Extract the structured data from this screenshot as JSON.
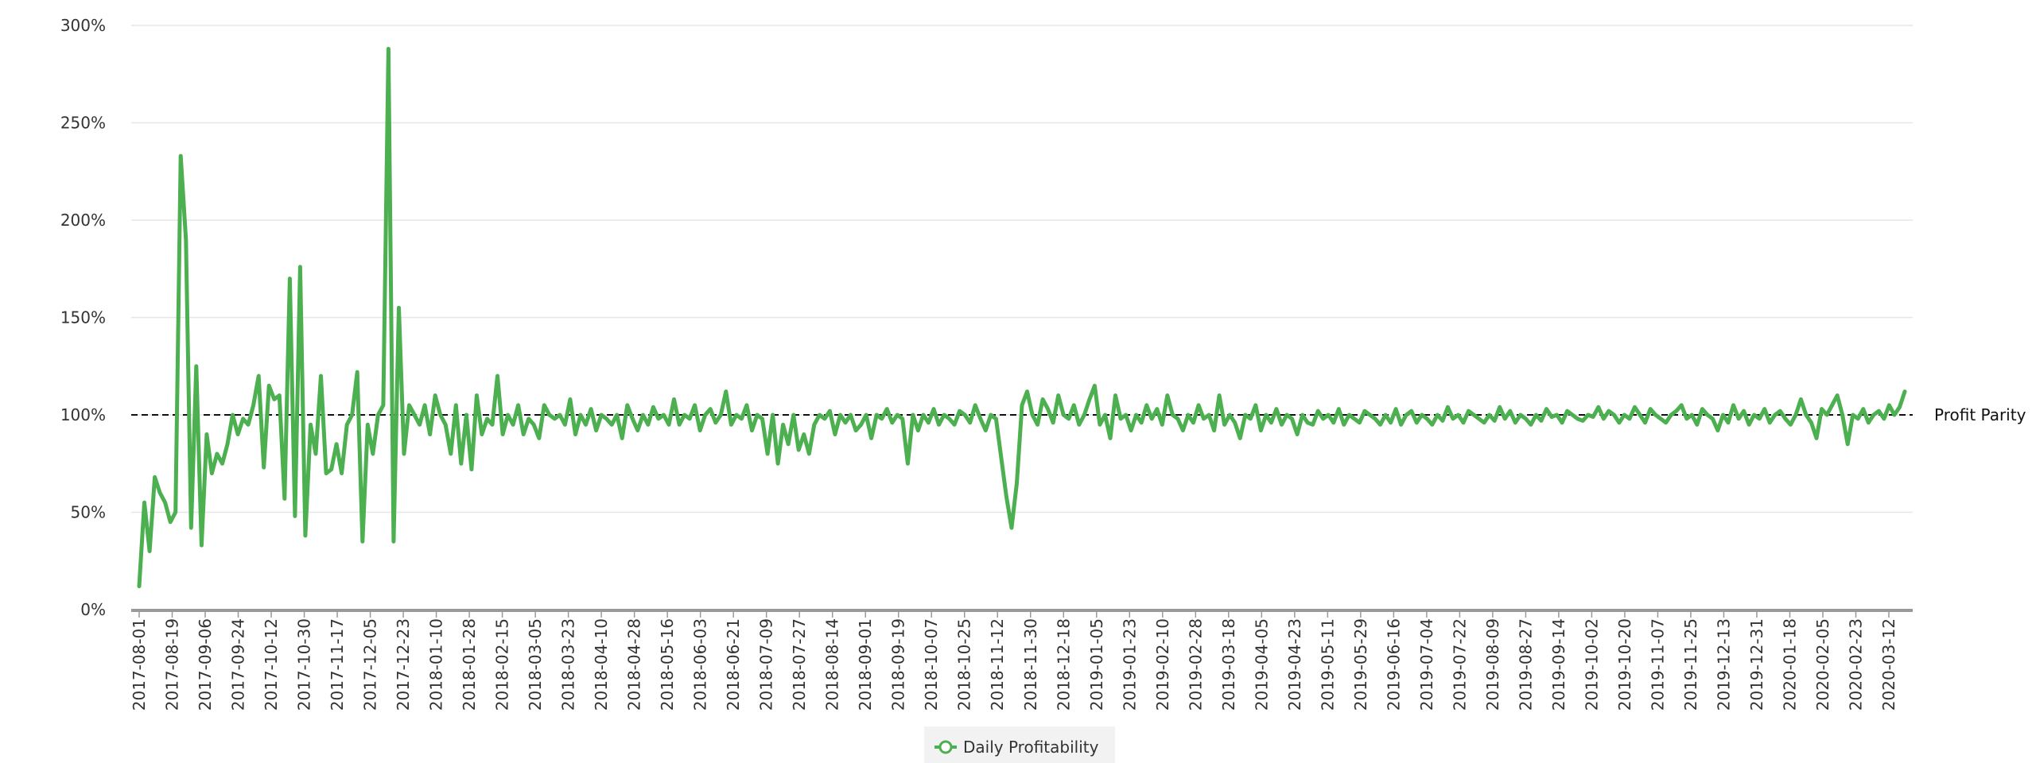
{
  "chart_data": {
    "type": "line",
    "title": "",
    "xlabel": "",
    "ylabel": "",
    "ylim": [
      0,
      300
    ],
    "y_ticks": [
      "0%",
      "50%",
      "100%",
      "150%",
      "200%",
      "250%",
      "300%"
    ],
    "grid": "horizontal",
    "legend_position": "bottom-center",
    "colors": {
      "series": "#4caf50",
      "parity": "#111111",
      "grid": "#e6e6e6",
      "axis": "#999999",
      "legend_bg": "#f2f2f2"
    },
    "x_tick_labels": [
      "2017-08-01",
      "2017-08-19",
      "2017-09-06",
      "2017-09-24",
      "2017-10-12",
      "2017-10-30",
      "2017-11-17",
      "2017-12-05",
      "2017-12-23",
      "2018-01-10",
      "2018-01-28",
      "2018-02-15",
      "2018-03-05",
      "2018-03-23",
      "2018-04-10",
      "2018-04-28",
      "2018-05-16",
      "2018-06-03",
      "2018-06-21",
      "2018-07-09",
      "2018-07-27",
      "2018-08-14",
      "2018-09-01",
      "2018-09-19",
      "2018-10-07",
      "2018-10-25",
      "2018-11-12",
      "2018-11-30",
      "2018-12-18",
      "2019-01-05",
      "2019-01-23",
      "2019-02-10",
      "2019-02-28",
      "2019-03-18",
      "2019-04-05",
      "2019-04-23",
      "2019-05-11",
      "2019-05-29",
      "2019-06-16",
      "2019-07-04",
      "2019-07-22",
      "2019-08-09",
      "2019-08-27",
      "2019-09-14",
      "2019-10-02",
      "2019-10-20",
      "2019-11-07",
      "2019-11-25",
      "2019-12-13",
      "2019-12-31",
      "2020-01-18",
      "2020-02-05",
      "2020-02-23",
      "2020-03-12"
    ],
    "annotations": [
      {
        "label": "Profit Parity",
        "y": 100
      }
    ],
    "series": [
      {
        "name": "Daily Profitability",
        "x_start": "2017-08-01",
        "x_step_days": 3,
        "values": [
          12,
          55,
          30,
          68,
          60,
          55,
          45,
          50,
          233,
          190,
          42,
          125,
          33,
          90,
          70,
          80,
          75,
          85,
          100,
          90,
          98,
          95,
          105,
          120,
          73,
          115,
          108,
          110,
          57,
          170,
          48,
          176,
          38,
          95,
          80,
          120,
          70,
          72,
          85,
          70,
          95,
          100,
          122,
          35,
          95,
          80,
          100,
          105,
          288,
          35,
          155,
          80,
          105,
          100,
          95,
          105,
          90,
          110,
          100,
          95,
          80,
          105,
          75,
          100,
          72,
          110,
          90,
          98,
          95,
          120,
          90,
          100,
          95,
          105,
          90,
          98,
          95,
          88,
          105,
          100,
          98,
          100,
          95,
          108,
          90,
          100,
          95,
          103,
          92,
          100,
          98,
          95,
          100,
          88,
          105,
          98,
          92,
          100,
          95,
          104,
          98,
          100,
          95,
          108,
          95,
          100,
          98,
          105,
          92,
          100,
          103,
          96,
          100,
          112,
          95,
          100,
          98,
          105,
          92,
          100,
          98,
          80,
          100,
          75,
          95,
          85,
          100,
          82,
          90,
          80,
          95,
          100,
          98,
          102,
          90,
          100,
          96,
          100,
          92,
          95,
          100,
          88,
          100,
          98,
          103,
          96,
          100,
          98,
          75,
          100,
          92,
          100,
          96,
          103,
          95,
          100,
          98,
          95,
          102,
          100,
          96,
          105,
          98,
          92,
          100,
          98,
          78,
          58,
          42,
          65,
          105,
          112,
          100,
          95,
          108,
          103,
          96,
          110,
          100,
          98,
          105,
          95,
          100,
          108,
          115,
          95,
          100,
          88,
          110,
          98,
          100,
          92,
          100,
          96,
          105,
          98,
          103,
          95,
          110,
          100,
          98,
          92,
          100,
          96,
          105,
          98,
          100,
          92,
          110,
          95,
          100,
          96,
          88,
          100,
          98,
          105,
          92,
          100,
          96,
          103,
          95,
          100,
          98,
          90,
          100,
          96,
          95,
          102,
          98,
          100,
          96,
          103,
          95,
          100,
          98,
          96,
          102,
          100,
          98,
          95,
          100,
          96,
          103,
          95,
          100,
          102,
          96,
          100,
          98,
          95,
          100,
          97,
          104,
          98,
          100,
          96,
          102,
          100,
          98,
          96,
          100,
          97,
          104,
          98,
          102,
          96,
          100,
          98,
          95,
          100,
          97,
          103,
          99,
          100,
          96,
          102,
          100,
          98,
          97,
          100,
          99,
          104,
          98,
          102,
          100,
          96,
          100,
          98,
          104,
          100,
          96,
          103,
          100,
          98,
          96,
          100,
          102,
          105,
          98,
          100,
          95,
          103,
          100,
          98,
          92,
          100,
          96,
          105,
          98,
          102,
          95,
          100,
          98,
          103,
          96,
          100,
          102,
          98,
          95,
          100,
          108,
          100,
          96,
          88,
          103,
          100,
          105,
          110,
          100,
          85,
          100,
          98,
          103,
          96,
          100,
          102,
          98,
          105,
          100,
          104,
          112
        ]
      }
    ]
  }
}
